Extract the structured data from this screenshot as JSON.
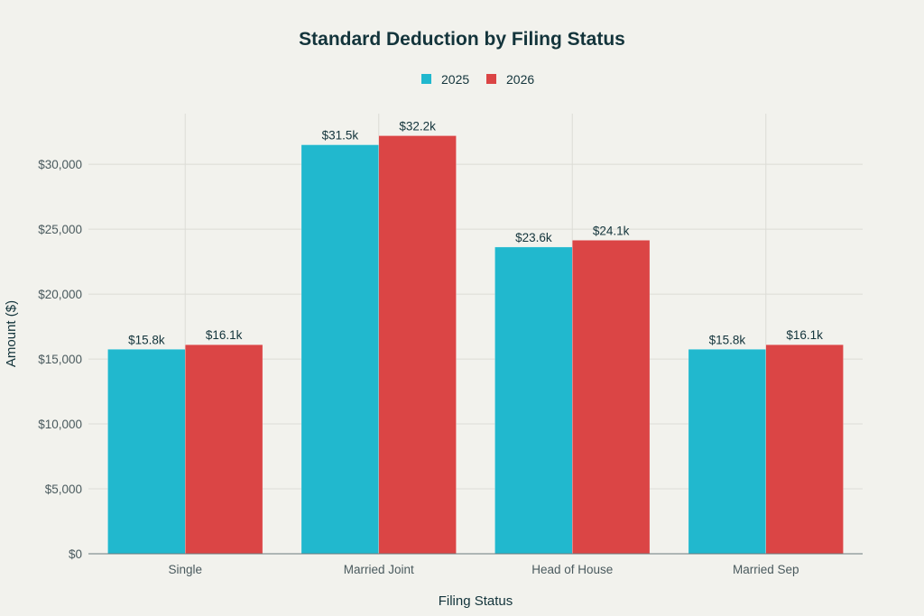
{
  "chart_data": {
    "type": "bar",
    "title": "Standard Deduction by Filing Status",
    "xlabel": "Filing Status",
    "ylabel": "Amount ($)",
    "categories": [
      "Single",
      "Married Joint",
      "Head of House",
      "Married Sep"
    ],
    "series": [
      {
        "name": "2025",
        "color": "#21B8CE",
        "values": [
          15750,
          31500,
          23625,
          15750
        ],
        "labels": [
          "$15.8k",
          "$31.5k",
          "$23.6k",
          "$15.8k"
        ]
      },
      {
        "name": "2026",
        "color": "#DB4545",
        "values": [
          16100,
          32200,
          24150,
          16100
        ],
        "labels": [
          "$16.1k",
          "$32.2k",
          "$24.1k",
          "$16.1k"
        ]
      }
    ],
    "ylim": [
      0,
      33900
    ],
    "yticks": [
      0,
      5000,
      10000,
      15000,
      20000,
      25000,
      30000
    ],
    "ytick_labels": [
      "$0",
      "$5,000",
      "$10,000",
      "$15,000",
      "$20,000",
      "$25,000",
      "$30,000"
    ],
    "grid": true,
    "legend_position": "top-center"
  }
}
